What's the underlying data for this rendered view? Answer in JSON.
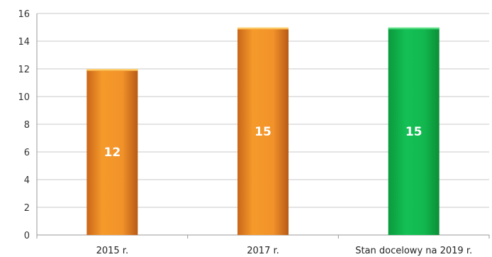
{
  "chart_data": {
    "type": "bar",
    "categories": [
      "2015 r.",
      "2017 r.",
      "Stan docelowy na 2019 r."
    ],
    "values": [
      12,
      15,
      15
    ],
    "data_labels": [
      "12",
      "15",
      "15"
    ],
    "bar_colors": [
      "#f0911f",
      "#f0911f",
      "#12b04a"
    ],
    "ylim": [
      0,
      16
    ],
    "yticks": [
      0,
      2,
      4,
      6,
      8,
      10,
      12,
      14,
      16
    ],
    "ytick_labels": [
      "0",
      "2",
      "4",
      "6",
      "8",
      "10",
      "12",
      "14",
      "16"
    ],
    "grid": true,
    "legend": "none",
    "title": "",
    "xlabel": "",
    "ylabel": ""
  }
}
